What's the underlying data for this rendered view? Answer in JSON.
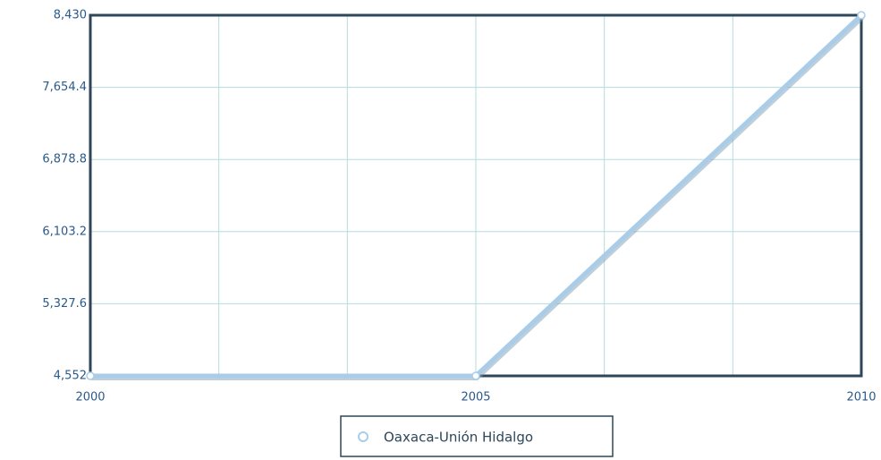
{
  "chart_data": {
    "type": "line",
    "x": [
      2000,
      2005,
      2010
    ],
    "series": [
      {
        "name": "Oaxaca-Unión Hidalgo",
        "color": "#a9cde9",
        "values": [
          4552,
          4552,
          8430
        ]
      }
    ],
    "xlim": [
      2000,
      2010
    ],
    "xticks": [
      2000,
      2005,
      2010
    ],
    "ylim": [
      4552,
      8430
    ],
    "yticks": [
      {
        "value": 4552,
        "label": "4,552"
      },
      {
        "value": 5327.6,
        "label": "5,327.6"
      },
      {
        "value": 6103.2,
        "label": "6,103.2"
      },
      {
        "value": 6878.8,
        "label": "6,878.8"
      },
      {
        "value": 7654.4,
        "label": "7,654.4"
      },
      {
        "value": 8430,
        "label": "8,430"
      }
    ],
    "grid": true,
    "legend": "bottom"
  }
}
